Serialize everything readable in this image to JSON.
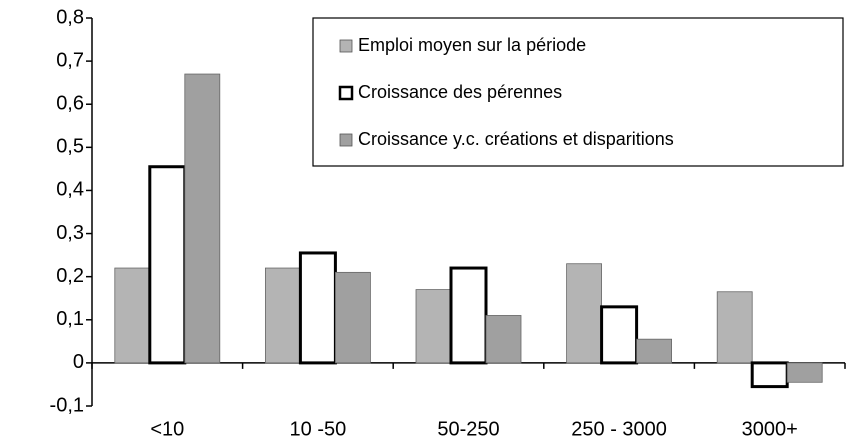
{
  "chart_data": {
    "type": "bar",
    "categories": [
      "<10",
      "10 -50",
      "50-250",
      "250 - 3000",
      "3000+"
    ],
    "series": [
      {
        "name": "Emploi moyen sur la période",
        "color": "#b4b4b4",
        "values": [
          0.22,
          0.22,
          0.17,
          0.23,
          0.165
        ]
      },
      {
        "name": "Croissance des pérennes",
        "color": "#ffffff",
        "values": [
          0.455,
          0.255,
          0.22,
          0.13,
          -0.055
        ]
      },
      {
        "name": "Croissance y.c. créations et disparitions",
        "color": "#a0a0a0",
        "values": [
          0.67,
          0.21,
          0.11,
          0.055,
          -0.045
        ]
      }
    ],
    "ylim": [
      -0.1,
      0.8
    ],
    "yticks": [
      {
        "value": -0.1,
        "label": "-0,1"
      },
      0,
      {
        "value": 0.1,
        "label": "0,1"
      },
      {
        "value": 0.2,
        "label": "0,2"
      },
      {
        "value": 0.3,
        "label": "0,3"
      },
      {
        "value": 0.4,
        "label": "0,4"
      },
      {
        "value": 0.5,
        "label": "0,5"
      },
      {
        "value": 0.6,
        "label": "0,6"
      },
      {
        "value": 0.7,
        "label": "0,7"
      },
      {
        "value": 0.8,
        "label": "0,8"
      }
    ],
    "grid": false,
    "legend": "upper right"
  }
}
